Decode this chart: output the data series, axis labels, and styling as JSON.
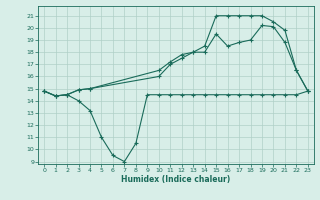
{
  "line1_x": [
    0,
    1,
    2,
    3,
    4,
    5,
    6,
    7,
    8,
    9,
    10,
    11,
    12,
    13,
    14,
    15,
    16,
    17,
    18,
    19,
    20,
    21,
    22,
    23
  ],
  "line1_y": [
    14.8,
    14.4,
    14.5,
    14.0,
    13.2,
    11.0,
    9.5,
    9.0,
    10.5,
    14.5,
    14.5,
    14.5,
    14.5,
    14.5,
    14.5,
    14.5,
    14.5,
    14.5,
    14.5,
    14.5,
    14.5,
    14.5,
    14.5,
    14.8
  ],
  "line2_x": [
    0,
    1,
    2,
    3,
    4,
    10,
    11,
    12,
    13,
    14,
    15,
    16,
    17,
    18,
    19,
    20,
    21,
    22,
    23
  ],
  "line2_y": [
    14.8,
    14.4,
    14.5,
    14.9,
    15.0,
    16.0,
    17.0,
    17.5,
    18.0,
    18.0,
    19.5,
    18.5,
    18.8,
    19.0,
    20.2,
    20.1,
    18.8,
    16.5,
    14.8
  ],
  "line3_x": [
    0,
    1,
    2,
    3,
    4,
    10,
    11,
    12,
    13,
    14,
    15,
    16,
    17,
    18,
    19,
    20,
    21,
    22,
    23
  ],
  "line3_y": [
    14.8,
    14.4,
    14.5,
    14.9,
    15.0,
    16.5,
    17.2,
    17.8,
    18.0,
    18.5,
    21.0,
    21.0,
    21.0,
    21.0,
    21.0,
    20.5,
    19.8,
    16.5,
    14.8
  ],
  "line_color": "#1a6b5a",
  "bg_color": "#d8eee8",
  "grid_color": "#b0d0c8",
  "xlabel": "Humidex (Indice chaleur)",
  "ylim": [
    8.8,
    21.8
  ],
  "xlim": [
    -0.5,
    23.5
  ],
  "yticks": [
    9,
    10,
    11,
    12,
    13,
    14,
    15,
    16,
    17,
    18,
    19,
    20,
    21
  ],
  "xticks": [
    0,
    1,
    2,
    3,
    4,
    5,
    6,
    7,
    8,
    9,
    10,
    11,
    12,
    13,
    14,
    15,
    16,
    17,
    18,
    19,
    20,
    21,
    22,
    23
  ],
  "figsize": [
    3.2,
    2.0
  ],
  "dpi": 100
}
